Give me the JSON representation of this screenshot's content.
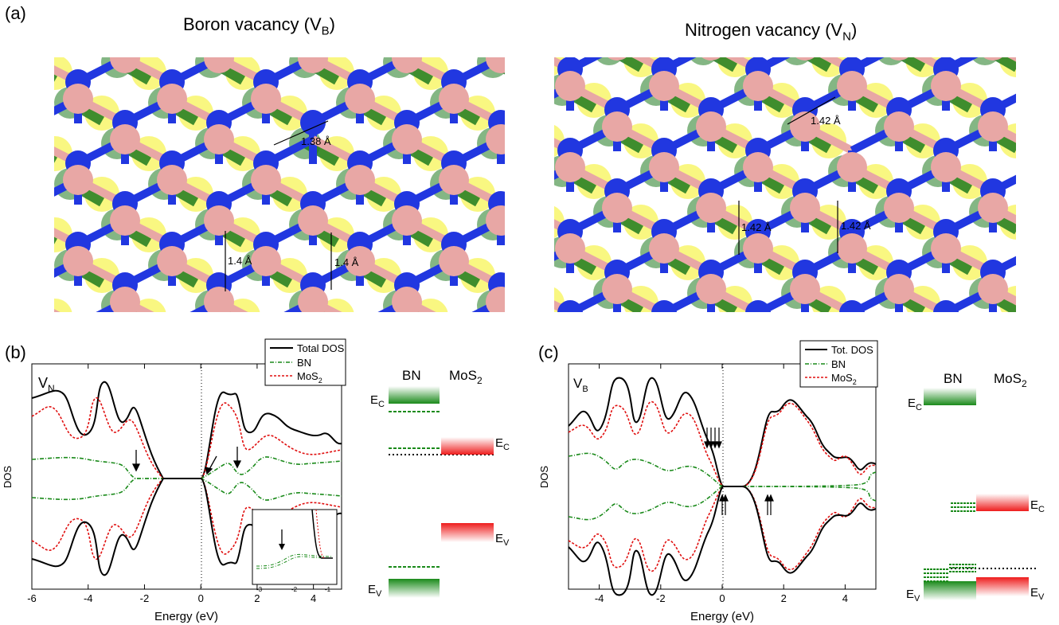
{
  "panel_a": {
    "letter": "(a)",
    "left": {
      "title": "Boron vacancy (V",
      "title_sub": "B",
      "title_end": ")",
      "bonds": [
        "1.38 Å",
        "1.4 Å",
        "1.4 Å"
      ]
    },
    "right": {
      "title": "Nitrogen vacancy (V",
      "title_sub": "N",
      "title_end": ")",
      "bonds": [
        "1.42 Å",
        "1.42 Å",
        "1.42 Å"
      ]
    },
    "colors": {
      "boron": "#e8a7a5",
      "nitrogen": "#2137e0",
      "molybdenum": "#1f7a1f",
      "sulfur": "#f4f01a"
    }
  },
  "panel_b": {
    "letter": "(b)",
    "label_main": "V",
    "label_sub": "N",
    "ylabel": "DOS",
    "xlabel": "Energy (eV)",
    "legend": [
      "Total DOS",
      "BN",
      "MoS",
      "2"
    ],
    "band": {
      "bn": "BN",
      "mos2": "MoS",
      "mos2_sub": "2",
      "ec": "E",
      "ec_sub": "C",
      "ev": "E",
      "ev_sub": "V"
    }
  },
  "panel_c": {
    "letter": "(c)",
    "label_main": "V",
    "label_sub": "B",
    "ylabel": "DOS",
    "xlabel": "Energy (eV)",
    "legend": [
      "Tot. DOS",
      "BN",
      "MoS",
      "2"
    ],
    "band": {
      "bn": "BN",
      "mos2": "MoS",
      "mos2_sub": "2",
      "ec": "E",
      "ec_sub": "C",
      "ev": "E",
      "ev_sub": "V"
    }
  },
  "chart_data": [
    {
      "type": "line",
      "panel": "b",
      "xlabel": "Energy (eV)",
      "ylabel": "DOS",
      "xlim": [
        -6,
        5
      ],
      "x_ticks": [
        -6,
        -4,
        -2,
        0,
        2,
        4
      ],
      "inset_x_ticks": [
        -3,
        -2,
        -1
      ],
      "series": [
        {
          "name": "Total DOS",
          "color": "#000000",
          "style": "solid"
        },
        {
          "name": "BN",
          "color": "#1a8a1a",
          "style": "dash-dot"
        },
        {
          "name": "MoS2",
          "color": "#e01010",
          "style": "dotted"
        }
      ]
    },
    {
      "type": "line",
      "panel": "c",
      "xlabel": "Energy (eV)",
      "ylabel": "DOS",
      "xlim": [
        -5,
        5
      ],
      "x_ticks": [
        -4,
        -2,
        0,
        2,
        4
      ],
      "series": [
        {
          "name": "Tot. DOS",
          "color": "#000000",
          "style": "solid"
        },
        {
          "name": "BN",
          "color": "#1a8a1a",
          "style": "dash-dot"
        },
        {
          "name": "MoS2",
          "color": "#e01010",
          "style": "dotted"
        }
      ]
    }
  ]
}
